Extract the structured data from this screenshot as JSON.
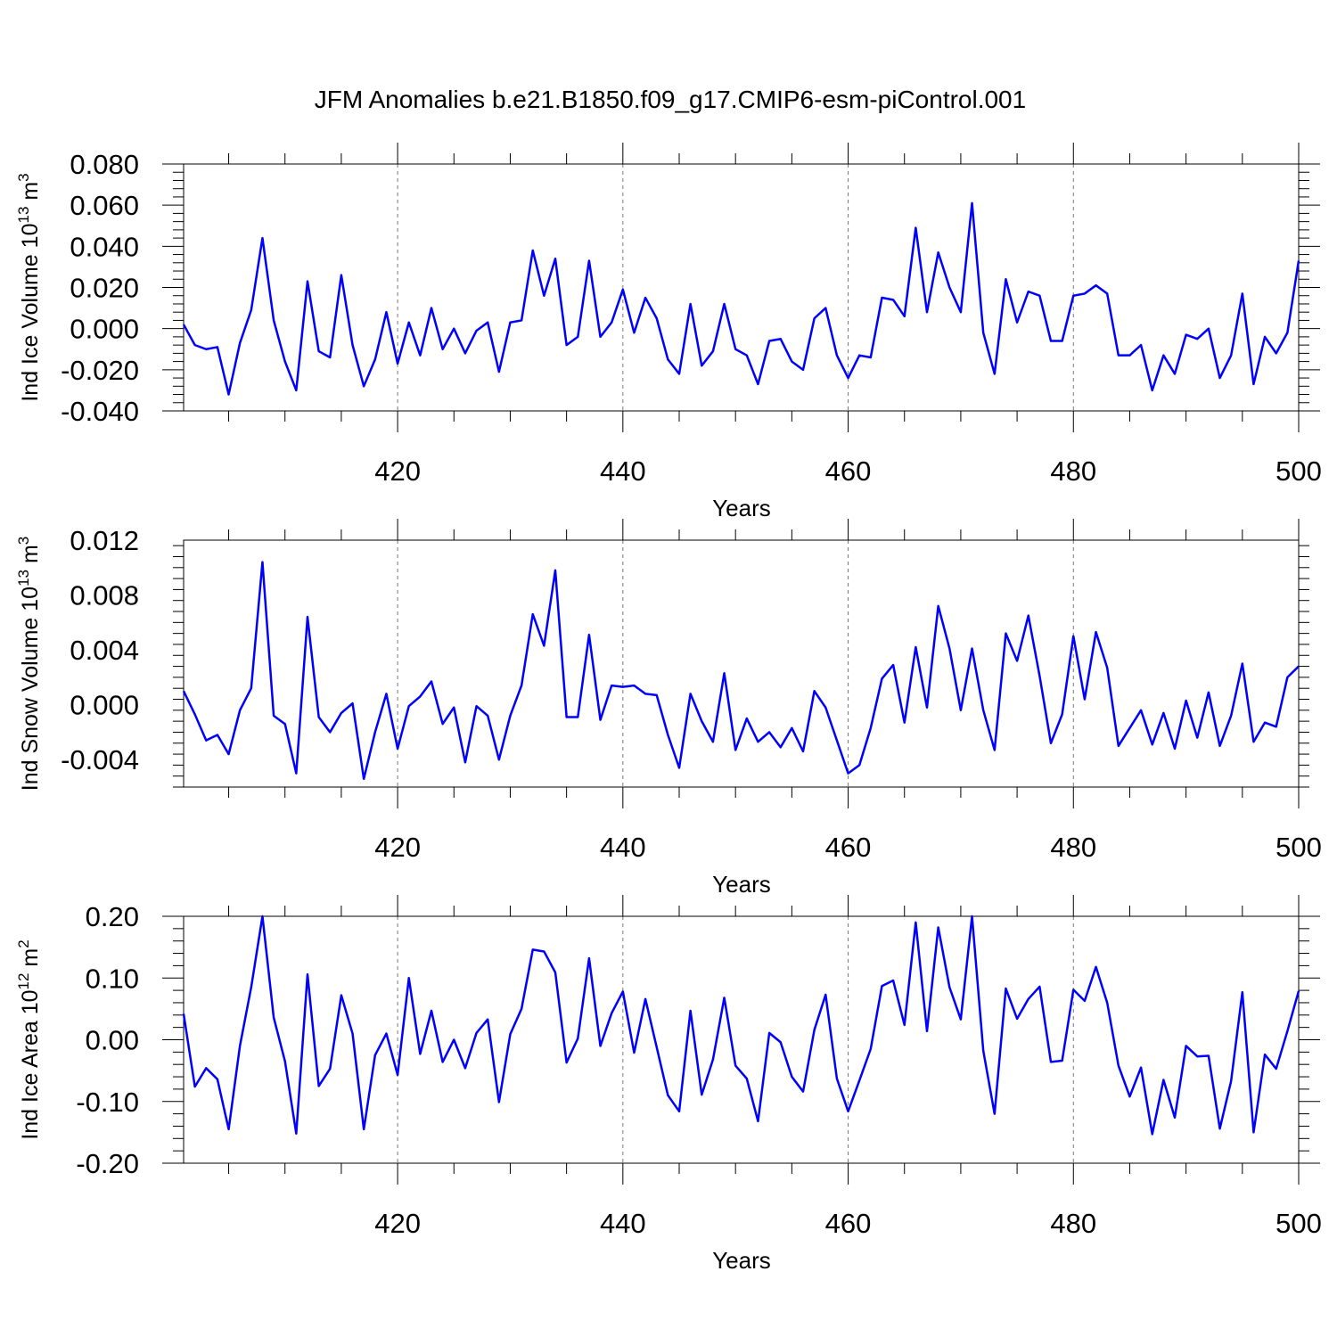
{
  "title": "JFM Anomalies b.e21.B1850.f09_g17.CMIP6-esm-piControl.001",
  "chart_data": [
    {
      "type": "line",
      "title": "JFM Anomalies b.e21.B1850.f09_g17.CMIP6-esm-piControl.001",
      "xlabel": "Years",
      "ylabel_main": "Ind Ice Volume 10",
      "ylabel_exp": "13",
      "ylabel_unit": " m",
      "ylabel_unit_exp": "3",
      "xlim": [
        401,
        500
      ],
      "ylim": [
        -0.04,
        0.08
      ],
      "yticks": [
        -0.04,
        -0.02,
        0.0,
        0.02,
        0.04,
        0.06,
        0.08
      ],
      "ytick_labels": [
        "-0.040",
        "-0.020",
        "0.000",
        "0.020",
        "0.040",
        "0.060",
        "0.080"
      ],
      "xticks": [
        420,
        440,
        460,
        480,
        500
      ],
      "xtick_labels": [
        "420",
        "440",
        "460",
        "480",
        "500"
      ],
      "grid_x": [
        420,
        440,
        460,
        480
      ],
      "x_start": 401,
      "series": [
        {
          "name": "Ind Ice Volume",
          "color": "#0000ff",
          "values": [
            0.002,
            -0.008,
            -0.01,
            -0.009,
            -0.032,
            -0.007,
            0.009,
            0.044,
            0.004,
            -0.016,
            -0.03,
            0.023,
            -0.011,
            -0.014,
            0.026,
            -0.008,
            -0.028,
            -0.015,
            0.008,
            -0.017,
            0.003,
            -0.013,
            0.01,
            -0.01,
            0.0,
            -0.012,
            -0.001,
            0.003,
            -0.021,
            0.003,
            0.004,
            0.038,
            0.016,
            0.034,
            -0.008,
            -0.004,
            0.033,
            -0.004,
            0.003,
            0.019,
            -0.002,
            0.015,
            0.005,
            -0.015,
            -0.022,
            0.012,
            -0.018,
            -0.011,
            0.012,
            -0.01,
            -0.013,
            -0.027,
            -0.006,
            -0.005,
            -0.016,
            -0.02,
            0.005,
            0.01,
            -0.013,
            -0.024,
            -0.013,
            -0.014,
            0.015,
            0.014,
            0.006,
            0.049,
            0.008,
            0.037,
            0.02,
            0.008,
            0.061,
            -0.002,
            -0.022,
            0.024,
            0.003,
            0.018,
            0.016,
            -0.006,
            -0.006,
            0.016,
            0.017,
            0.021,
            0.017,
            -0.013,
            -0.013,
            -0.008,
            -0.03,
            -0.013,
            -0.022,
            -0.003,
            -0.005,
            0.0,
            -0.024,
            -0.013,
            0.017,
            -0.027,
            -0.004,
            -0.012,
            -0.002,
            0.033
          ]
        }
      ]
    },
    {
      "type": "line",
      "title": "",
      "xlabel": "Years",
      "ylabel_main": "Ind Snow Volume 10",
      "ylabel_exp": "13",
      "ylabel_unit": " m",
      "ylabel_unit_exp": "3",
      "xlim": [
        401,
        500
      ],
      "ylim": [
        -0.006,
        0.012
      ],
      "yticks": [
        -0.004,
        0.0,
        0.004,
        0.008,
        0.012
      ],
      "ytick_labels": [
        "-0.004",
        "0.000",
        "0.004",
        "0.008",
        "0.012"
      ],
      "xticks": [
        420,
        440,
        460,
        480,
        500
      ],
      "xtick_labels": [
        "420",
        "440",
        "460",
        "480",
        "500"
      ],
      "grid_x": [
        420,
        440,
        460,
        480
      ],
      "x_start": 401,
      "series": [
        {
          "name": "Ind Snow Volume",
          "color": "#0000ff",
          "values": [
            0.001,
            -0.0007,
            -0.0026,
            -0.0022,
            -0.0036,
            -0.0004,
            0.0012,
            0.0104,
            -0.0008,
            -0.0014,
            -0.005,
            0.0064,
            -0.0009,
            -0.002,
            -0.0006,
            0.0001,
            -0.0054,
            -0.002,
            0.0008,
            -0.0032,
            -0.0001,
            0.0006,
            0.0017,
            -0.0014,
            -0.0002,
            -0.0042,
            -0.0001,
            -0.0008,
            -0.004,
            -0.0008,
            0.0014,
            0.0066,
            0.0043,
            0.0098,
            -0.0009,
            -0.0009,
            0.0051,
            -0.0011,
            0.0014,
            0.0013,
            0.0014,
            0.0008,
            0.0007,
            -0.0022,
            -0.0046,
            0.0008,
            -0.0012,
            -0.0027,
            0.0023,
            -0.0033,
            -0.001,
            -0.0027,
            -0.002,
            -0.0031,
            -0.0017,
            -0.0034,
            0.001,
            -0.0002,
            -0.0026,
            -0.005,
            -0.0044,
            -0.0017,
            0.0019,
            0.0029,
            -0.0013,
            0.0042,
            -0.0002,
            0.0072,
            0.0041,
            -0.0004,
            0.0041,
            -0.0004,
            -0.0033,
            0.0052,
            0.0032,
            0.0065,
            0.0021,
            -0.0028,
            -0.0007,
            0.005,
            0.0004,
            0.0053,
            0.0027,
            -0.003,
            -0.0017,
            -0.0004,
            -0.0029,
            -0.0006,
            -0.0032,
            0.0003,
            -0.0024,
            0.0009,
            -0.003,
            -0.0008,
            0.003,
            -0.0027,
            -0.0013,
            -0.0016,
            0.002,
            0.0028
          ]
        }
      ]
    },
    {
      "type": "line",
      "title": "",
      "xlabel": "Years",
      "ylabel_main": "Ind Ice Area 10",
      "ylabel_exp": "12",
      "ylabel_unit": " m",
      "ylabel_unit_exp": "2",
      "xlim": [
        401,
        500
      ],
      "ylim": [
        -0.2,
        0.2
      ],
      "yticks": [
        -0.2,
        -0.1,
        0.0,
        0.1,
        0.2
      ],
      "ytick_labels": [
        "-0.20",
        "-0.10",
        "0.00",
        "0.10",
        "0.20"
      ],
      "xticks": [
        420,
        440,
        460,
        480,
        500
      ],
      "xtick_labels": [
        "420",
        "440",
        "460",
        "480",
        "500"
      ],
      "grid_x": [
        420,
        440,
        460,
        480
      ],
      "x_start": 401,
      "series": [
        {
          "name": "Ind Ice Area",
          "color": "#0000ff",
          "values": [
            0.042,
            -0.076,
            -0.046,
            -0.064,
            -0.145,
            -0.01,
            0.085,
            0.2,
            0.036,
            -0.035,
            -0.152,
            0.106,
            -0.075,
            -0.047,
            0.072,
            0.01,
            -0.145,
            -0.025,
            0.01,
            -0.057,
            0.1,
            -0.023,
            0.047,
            -0.036,
            0.0,
            -0.046,
            0.011,
            0.033,
            -0.101,
            0.009,
            0.05,
            0.146,
            0.143,
            0.109,
            -0.037,
            0.002,
            0.132,
            -0.01,
            0.043,
            0.078,
            -0.021,
            0.066,
            -0.012,
            -0.09,
            -0.116,
            0.047,
            -0.089,
            -0.032,
            0.068,
            -0.042,
            -0.063,
            -0.132,
            0.011,
            -0.004,
            -0.06,
            -0.084,
            0.016,
            0.073,
            -0.063,
            -0.116,
            -0.066,
            -0.015,
            0.087,
            0.096,
            0.024,
            0.19,
            0.014,
            0.182,
            0.085,
            0.033,
            0.2,
            -0.018,
            -0.12,
            0.083,
            0.034,
            0.066,
            0.086,
            -0.036,
            -0.034,
            0.081,
            0.063,
            0.118,
            0.06,
            -0.042,
            -0.092,
            -0.045,
            -0.153,
            -0.065,
            -0.126,
            -0.01,
            -0.027,
            -0.026,
            -0.144,
            -0.067,
            0.077,
            -0.15,
            -0.024,
            -0.047,
            0.014,
            0.079
          ]
        }
      ]
    }
  ]
}
